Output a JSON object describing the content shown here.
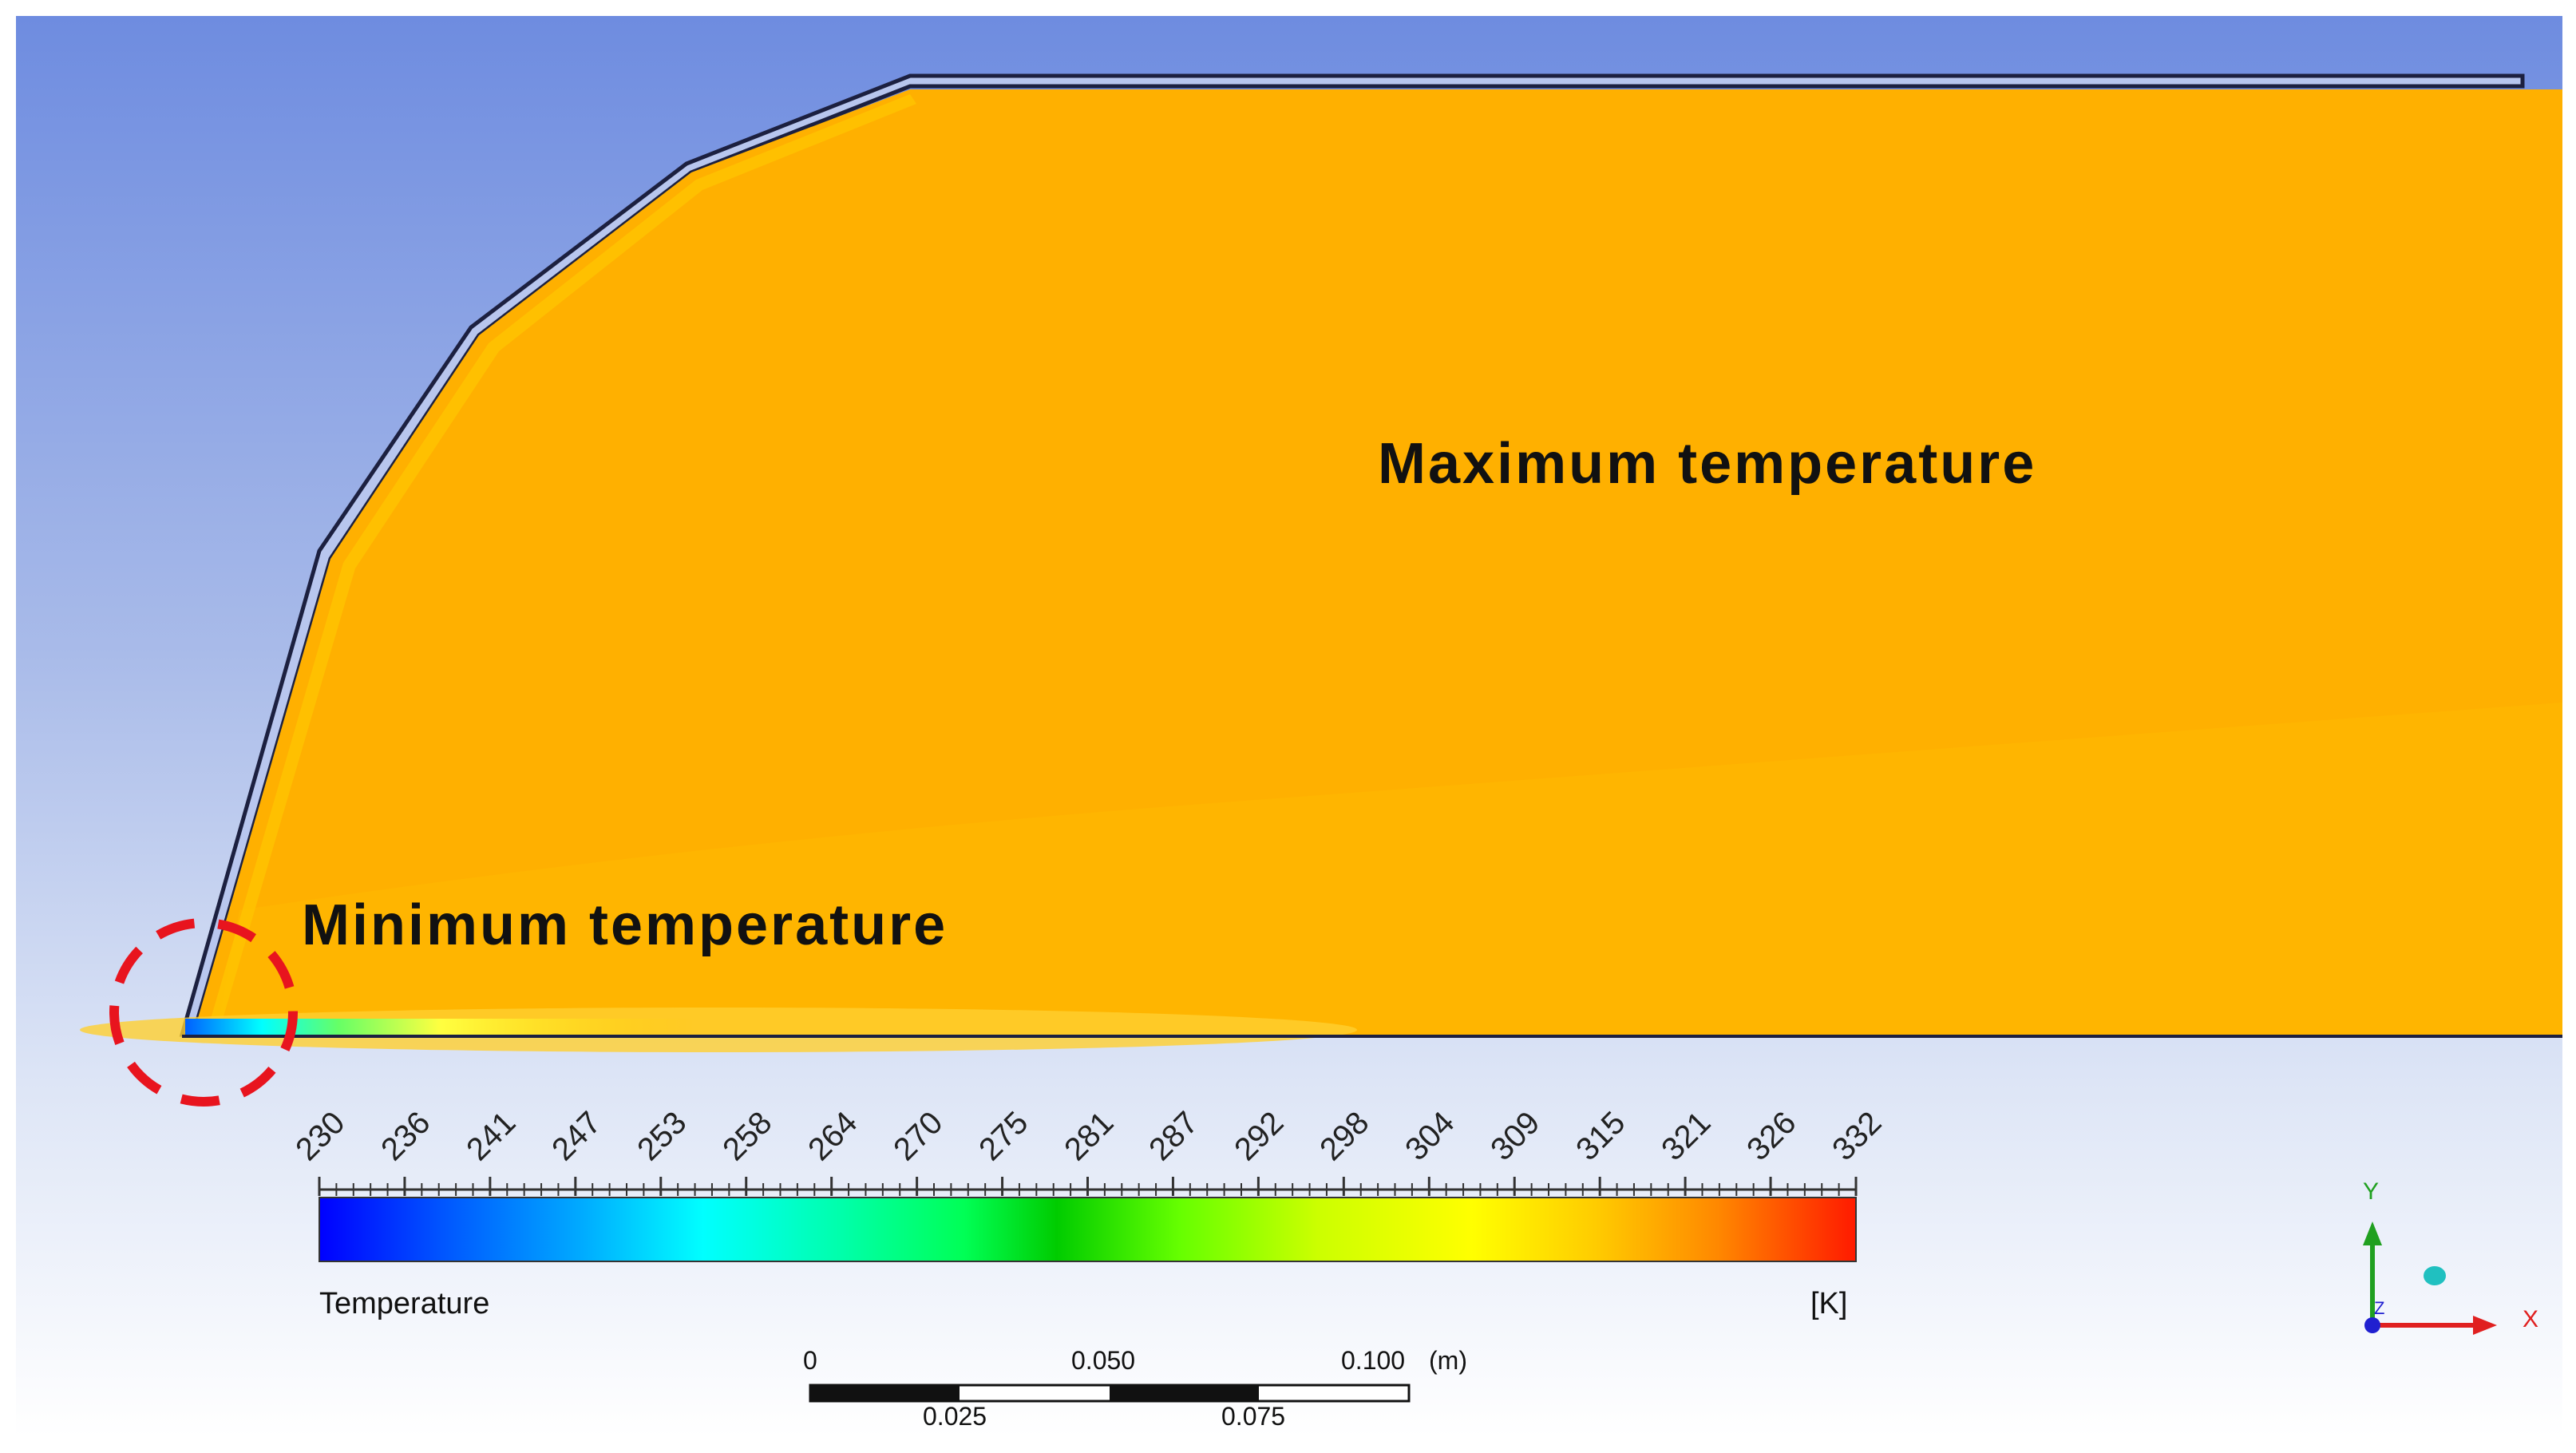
{
  "annotations": {
    "maximum": "Maximum temperature",
    "minimum": "Minimum temperature"
  },
  "legend": {
    "title": "Temperature",
    "unit": "[K]",
    "min": 230,
    "max": 332,
    "tick_labels": [
      "230",
      "236",
      "241",
      "247",
      "253",
      "258",
      "264",
      "270",
      "275",
      "281",
      "287",
      "292",
      "298",
      "304",
      "309",
      "315",
      "321",
      "326",
      "332"
    ],
    "colormap": [
      "#0000ff",
      "#0055ff",
      "#00aaff",
      "#00ffff",
      "#00ff88",
      "#00cc00",
      "#66ff00",
      "#ccff00",
      "#ffff00",
      "#ffcc00",
      "#ff9900",
      "#ff6600",
      "#ff0000"
    ]
  },
  "scale_bar": {
    "top_labels": [
      "0",
      "0.050",
      "0.100"
    ],
    "bottom_labels": [
      "0.025",
      "0.075"
    ],
    "unit": "(m)"
  },
  "axes_triad": {
    "x_label": "X",
    "y_label": "Y",
    "z_label": "Z",
    "x_color": "#e02020",
    "y_color": "#20a020",
    "z_color": "#2020d0"
  },
  "colors": {
    "background_top": "#6e8ce0",
    "background_bottom": "#ffffff",
    "field_fill": "#ffb000",
    "highlight_circle": "#e8141e"
  }
}
